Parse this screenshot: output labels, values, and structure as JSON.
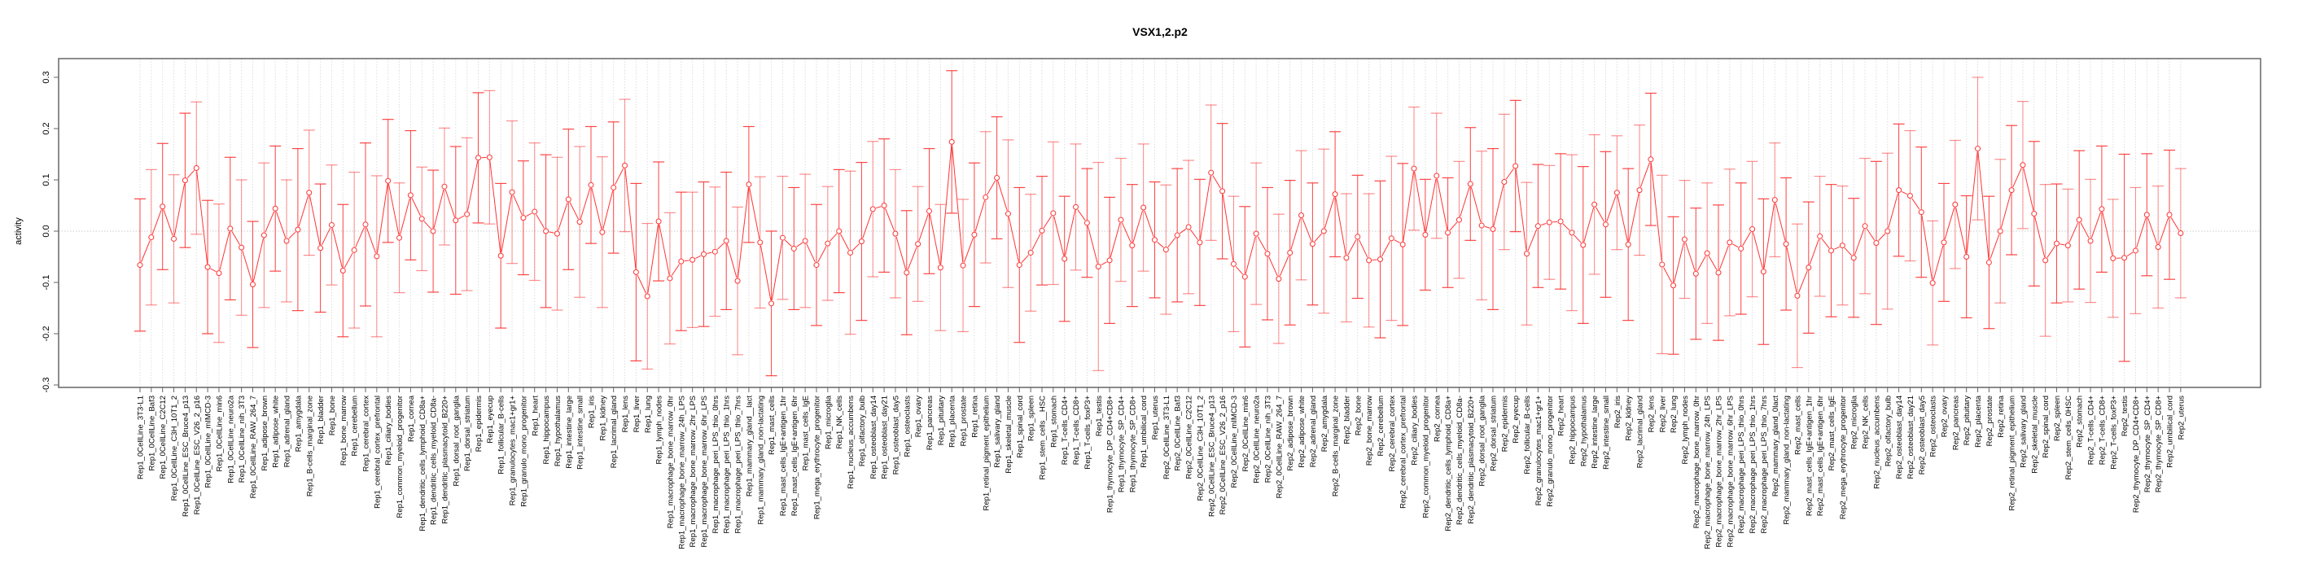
{
  "chart_data": {
    "type": "line",
    "title": "VSX1,2.p2",
    "xlabel": "",
    "ylabel": "activity",
    "ylim": [
      -0.3,
      0.3
    ],
    "yticks": [
      "-0.3",
      "-0.2",
      "-0.1",
      "0.0",
      "0.1",
      "0.2",
      "0.3"
    ],
    "grid": "dotted vertical at each category, dotted horizontal at 0",
    "legend": "none",
    "color": "#ff3333",
    "categories": [
      "Rep1_0CellLine_3T3-L1",
      "Rep1_0CellLine_Baf3",
      "Rep1_0CellLine_C2C12",
      "Rep1_0CellLine_C3H_10T1_2",
      "Rep1_0CellLine_ESC_Bruce4_p13",
      "Rep1_0CellLine_ESC_V26_2_p16",
      "Rep1_0CellLine_mIMCD-3",
      "Rep1_0CellLine_min6",
      "Rep1_0CellLine_neuro2a",
      "Rep1_0CellLine_nih_3T3",
      "Rep1_0CellLine_RAW_264_7",
      "Rep1_adipose_brown",
      "Rep1_adipose_white",
      "Rep1_adrenal_gland",
      "Rep1_amygdala",
      "Rep1_B-cells_marginal_zone",
      "Rep1_bladder",
      "Rep1_bone",
      "Rep1_bone_marrow",
      "Rep1_cerebellum",
      "Rep1_cerebral_cortex",
      "Rep1_cerebral_cortex_prefrontal",
      "Rep1_ciliary_bodies",
      "Rep1_common_myeloid_progenitor",
      "Rep1_cornea",
      "Rep1_dendritic_cells_lymphoid_CD8a+",
      "Rep1_dendritic_cells_myeloid_CD8a-",
      "Rep1_dendritic_plasmacytoid_B220+",
      "Rep1_dorsal_root_ganglia",
      "Rep1_dorsal_striatum",
      "Rep1_epidermis",
      "Rep1_eyecup",
      "Rep1_follicular_B-cells",
      "Rep1_granulocytes_mac1+gr1+",
      "Rep1_granulo_mono_progenitor",
      "Rep1_heart",
      "Rep1_hippocampus",
      "Rep1_hypothalamus",
      "Rep1_intestine_large",
      "Rep1_intestine_small",
      "Rep1_iris",
      "Rep1_kidney",
      "Rep1_lacrimal_gland",
      "Rep1_lens",
      "Rep1_liver",
      "Rep1_lung",
      "Rep1_lymph_nodes",
      "Rep1_macrophage_bone_marrow_0hr",
      "Rep1_macrophage_bone_marrow_24h_LPS",
      "Rep1_macrophage_bone_marrow_2hr_LPS",
      "Rep1_macrophage_bone_marrow_6hr_LPS",
      "Rep1_macrophage_peri_LPS_thio_0hrs",
      "Rep1_macrophage_peri_LPS_thio_1hrs",
      "Rep1_macrophage_peri_LPS_thio_7hrs",
      "Rep1_mammary_gland__lact",
      "Rep1_mammary_gland_non-lactating",
      "Rep1_mast_cells",
      "Rep1_mast_cells_IgE+antigen_1hr",
      "Rep1_mast_cells_IgE+antigen_6hr",
      "Rep1_mast_cells_IgE",
      "Rep1_mega_erythrocyte_progenitor",
      "Rep1_microglia",
      "Rep1_NK_cells",
      "Rep1_nucleus_accumbens",
      "Rep1_olfactory_bulb",
      "Rep1_osteoblast_day14",
      "Rep1_osteoblast_day21",
      "Rep1_osteoblast_day5",
      "Rep1_osteoclasts",
      "Rep1_ovary",
      "Rep1_pancreas",
      "Rep1_pituitary",
      "Rep1_placenta",
      "Rep1_prostate",
      "Rep1_retina",
      "Rep1_retinal_pigment_epithelium",
      "Rep1_salivary_gland",
      "Rep1_skeletal_muscle",
      "Rep1_spinal_cord",
      "Rep1_spleen",
      "Rep1_stem_cells__HSC",
      "Rep1_stomach",
      "Rep1_T-cells_CD4+",
      "Rep1_T-cells_CD8+",
      "Rep1_T-cells_foxP3+",
      "Rep1_testis",
      "Rep1_thymocyte_DP_CD4+CD8+",
      "Rep1_thymocyte_SP_CD4+",
      "Rep1_thymocyte_SP_CD8+",
      "Rep1_umbilical_cord",
      "Rep1_uterus",
      "Rep2_0CellLine_3T3-L1",
      "Rep2_0CellLine_Baf3",
      "Rep2_0CellLine_C2C12",
      "Rep2_0CellLine_C3H_10T1_2",
      "Rep2_0CellLine_ESC_Bruce4_p13",
      "Rep2_0CellLine_ESC_V26_2_p16",
      "Rep2_0CellLine_mIMCD-3",
      "Rep2_0CellLine_min6",
      "Rep2_0CellLine_neuro2a",
      "Rep2_0CellLine_nih_3T3",
      "Rep2_0CellLine_RAW_264_7",
      "Rep2_adipose_brown",
      "Rep2_adipose_white",
      "Rep2_adrenal_gland",
      "Rep2_amygdala",
      "Rep2_B-cells_marginal_zone",
      "Rep2_bladder",
      "Rep2_bone",
      "Rep2_bone_marrow",
      "Rep2_cerebellum",
      "Rep2_cerebral_cortex",
      "Rep2_cerebral_cortex_prefrontal",
      "Rep2_ciliary_bodies",
      "Rep2_common_myeloid_progenitor",
      "Rep2_cornea",
      "Rep2_dendritic_cells_lymphoid_CD8a+",
      "Rep2_dendritic_cells_myeloid_CD8a-",
      "Rep2_dendritic_plasmacytoid_B220+",
      "Rep2_dorsal_root_ganglia",
      "Rep2_dorsal_striatum",
      "Rep2_epidermis",
      "Rep2_eyecup",
      "Rep2_follicular_B-cells",
      "Rep2_granulocytes_mac1+gr1+",
      "Rep2_granulo_mono_progenitor",
      "Rep2_heart",
      "Rep2_hippocampus",
      "Rep2_hypothalamus",
      "Rep2_intestine_large",
      "Rep2_intestine_small",
      "Rep2_iris",
      "Rep2_kidney",
      "Rep2_lacrimal_gland",
      "Rep2_lens",
      "Rep2_liver",
      "Rep2_lung",
      "Rep2_lymph_nodes",
      "Rep2_macrophage_bone_marrow_0hr",
      "Rep2_macrophage_bone_marrow_24h_LPS",
      "Rep2_macrophage_bone_marrow_2hr_LPS",
      "Rep2_macrophage_bone_marrow_6hr_LPS",
      "Rep2_macrophage_peri_LPS_thio_0hrs",
      "Rep2_macrophage_peri_LPS_thio_1hrs",
      "Rep2_macrophage_peri_LPS_thio_7hrs",
      "Rep2_mammary_gland_0lact",
      "Rep2_mammary_gland_non-lactating",
      "Rep2_mast_cells",
      "Rep2_mast_cells_IgE+antigen_1hr",
      "Rep2_mast_cells_IgE+antigen_6hr",
      "Rep2_mast_cells_IgE",
      "Rep2_mega_erythrocyte_progenitor",
      "Rep2_microglia",
      "Rep2_NK_cells",
      "Rep2_nucleus_accumbens",
      "Rep2_olfactory_bulb",
      "Rep2_osteoblast_day14",
      "Rep2_osteoblast_day21",
      "Rep2_osteoblast_day5",
      "Rep2_osteoclasts",
      "Rep2_ovary",
      "Rep2_pancreas",
      "Rep2_pituitary",
      "Rep2_placenta",
      "Rep2_prostate",
      "Rep2_retina",
      "Rep2_retinal_pigment_epithelium",
      "Rep2_salivary_gland",
      "Rep2_skeletal_muscle",
      "Rep2_spinal_cord",
      "Rep2_spleen",
      "Rep2_stem_cells_0HSC",
      "Rep2_stomach",
      "Rep2_T-cells_CD4+",
      "Rep2_T-cells_CD8+",
      "Rep2_T-cells_foxP3+",
      "Rep2_testis",
      "Rep2_thymocyte_DP_CD4+CD8+",
      "Rep2_thymocyte_SP_CD4+",
      "Rep2_thymocyte_SP_CD8+",
      "Rep2_umbilical_cord",
      "Rep2_uterus"
    ],
    "values": [
      -0.066,
      -0.012,
      0.048,
      -0.015,
      0.099,
      0.123,
      -0.07,
      -0.082,
      0.005,
      -0.032,
      -0.104,
      -0.008,
      0.044,
      -0.019,
      0.003,
      0.075,
      -0.033,
      0.012,
      -0.077,
      -0.037,
      0.013,
      -0.049,
      0.098,
      -0.013,
      0.07,
      0.024,
      0.0,
      0.087,
      0.021,
      0.033,
      0.143,
      0.144,
      -0.048,
      0.076,
      0.026,
      0.038,
      0.0,
      -0.005,
      0.062,
      0.018,
      0.09,
      -0.002,
      0.085,
      0.128,
      -0.08,
      -0.127,
      0.019,
      -0.092,
      -0.059,
      -0.056,
      -0.045,
      -0.04,
      -0.019,
      -0.097,
      0.091,
      -0.022,
      -0.141,
      -0.013,
      -0.034,
      -0.019,
      -0.066,
      -0.024,
      0.0,
      -0.042,
      -0.02,
      0.043,
      0.05,
      -0.005,
      -0.081,
      -0.025,
      0.039,
      -0.071,
      0.174,
      -0.067,
      -0.007,
      0.066,
      0.104,
      0.034,
      -0.066,
      -0.042,
      0.001,
      0.035,
      -0.054,
      0.047,
      0.016,
      -0.069,
      -0.057,
      0.022,
      -0.028,
      0.046,
      -0.017,
      -0.036,
      -0.008,
      0.008,
      -0.022,
      0.114,
      0.078,
      -0.064,
      -0.089,
      -0.005,
      -0.044,
      -0.093,
      -0.042,
      0.031,
      -0.025,
      0.0,
      0.072,
      -0.052,
      -0.011,
      -0.057,
      -0.055,
      -0.014,
      -0.026,
      0.122,
      -0.007,
      0.108,
      -0.003,
      0.022,
      0.092,
      0.011,
      0.004,
      0.096,
      0.127,
      -0.044,
      0.01,
      0.017,
      0.019,
      -0.003,
      -0.027,
      0.052,
      0.013,
      0.075,
      -0.026,
      0.08,
      0.14,
      -0.065,
      -0.106,
      -0.016,
      -0.083,
      -0.043,
      -0.081,
      -0.022,
      -0.034,
      0.004,
      -0.079,
      0.061,
      -0.025,
      -0.126,
      -0.071,
      -0.01,
      -0.038,
      -0.028,
      -0.052,
      0.01,
      -0.023,
      0.0,
      0.08,
      0.069,
      0.037,
      -0.101,
      -0.022,
      0.052,
      -0.05,
      0.161,
      -0.061,
      0.0,
      0.08,
      0.129,
      0.034,
      -0.057,
      -0.024,
      -0.028,
      0.022,
      -0.019,
      0.043,
      -0.053,
      -0.052,
      -0.038,
      0.032,
      -0.031,
      0.032,
      -0.004
    ],
    "errors": [
      0.129,
      0.132,
      0.123,
      0.125,
      0.131,
      0.129,
      0.13,
      0.135,
      0.139,
      0.132,
      0.123,
      0.141,
      0.122,
      0.119,
      0.158,
      0.122,
      0.125,
      0.117,
      0.129,
      0.152,
      0.159,
      0.157,
      0.12,
      0.107,
      0.126,
      0.101,
      0.119,
      0.114,
      0.144,
      0.149,
      0.127,
      0.13,
      0.141,
      0.139,
      0.111,
      0.134,
      0.149,
      0.149,
      0.137,
      0.147,
      0.114,
      0.147,
      0.128,
      0.129,
      0.173,
      0.142,
      0.116,
      0.128,
      0.135,
      0.132,
      0.141,
      0.126,
      0.134,
      0.144,
      0.113,
      0.128,
      0.141,
      0.12,
      0.119,
      0.13,
      0.118,
      0.111,
      0.12,
      0.159,
      0.154,
      0.132,
      0.13,
      0.125,
      0.121,
      0.112,
      0.122,
      0.123,
      0.139,
      0.129,
      0.14,
      0.128,
      0.119,
      0.144,
      0.151,
      0.114,
      0.106,
      0.139,
      0.122,
      0.123,
      0.106,
      0.203,
      0.123,
      0.12,
      0.119,
      0.124,
      0.113,
      0.126,
      0.13,
      0.13,
      0.123,
      0.132,
      0.132,
      0.132,
      0.137,
      0.138,
      0.129,
      0.126,
      0.141,
      0.126,
      0.119,
      0.16,
      0.122,
      0.125,
      0.12,
      0.13,
      0.153,
      0.16,
      0.158,
      0.12,
      0.108,
      0.122,
      0.107,
      0.114,
      0.11,
      0.145,
      0.157,
      0.132,
      0.128,
      0.139,
      0.12,
      0.111,
      0.132,
      0.152,
      0.153,
      0.136,
      0.142,
      0.111,
      0.148,
      0.127,
      0.129,
      0.174,
      0.134,
      0.115,
      0.128,
      0.137,
      0.132,
      0.143,
      0.128,
      0.132,
      0.142,
      0.111,
      0.129,
      0.14,
      0.128,
      0.117,
      0.129,
      0.116,
      0.116,
      0.132,
      0.159,
      0.152,
      0.129,
      0.127,
      0.127,
      0.121,
      0.115,
      0.125,
      0.119,
      0.139,
      0.129,
      0.14,
      0.126,
      0.124,
      0.141,
      0.148,
      0.116,
      0.11,
      0.135,
      0.12,
      0.123,
      0.115,
      0.202,
      0.123,
      0.119,
      0.119,
      0.126,
      0.126
    ]
  }
}
